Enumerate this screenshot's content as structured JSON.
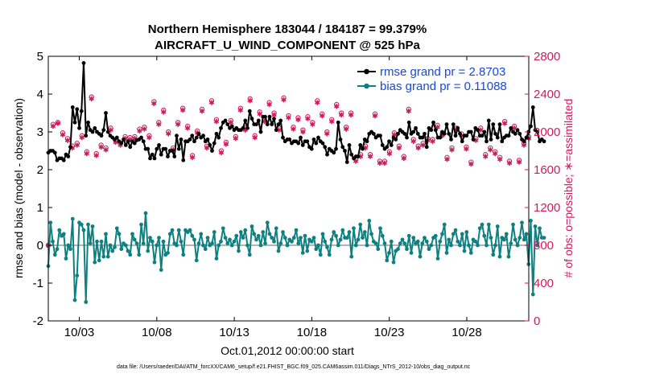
{
  "chart_data": {
    "type": "line",
    "title_line1": "Northern Hemisphere 183044 / 184187 = 99.379%",
    "title_line2": "AIRCRAFT_U_WIND_COMPONENT @ 525 hPa",
    "xlabel": "Oct.01,2012 00:00:00 start",
    "ylabel_left": "rmse and bias (model - observation)",
    "ylabel_right": "# of obs: o=possible; ∗=assimilated",
    "footnote": "data file: /Users/raeder/DAI/ATM_forcXX/CAM6_setup/f.e21.FHIST_BGC.f09_025.CAM6assim.011/Diags_NTrS_2012-10/obs_diag_output.nc",
    "x_tick_labels": [
      "10/03",
      "10/08",
      "10/13",
      "10/18",
      "10/23",
      "10/28"
    ],
    "x_tick_days": [
      3,
      8,
      13,
      18,
      23,
      28
    ],
    "xlim": [
      1,
      32
    ],
    "ylim_left": [
      -2,
      5
    ],
    "yticks_left": [
      "-2",
      "-1",
      "0",
      "1",
      "2",
      "3",
      "4",
      "5"
    ],
    "ylim_right": [
      0,
      2800
    ],
    "yticks_right": [
      "0",
      "400",
      "800",
      "1200",
      "1600",
      "2000",
      "2400",
      "2800"
    ],
    "grid": false,
    "legend_position": "top-right",
    "colors": {
      "rmse": "#000000",
      "bias": "#0f8080",
      "obs": "#d01a5c",
      "zero_line": "#b4b4b4",
      "legend_text": "#1a48d8"
    },
    "series": [
      {
        "name": "rmse grand pr = 2.8703",
        "axis": "left",
        "values": [
          2.45,
          2.5,
          2.5,
          2.45,
          2.25,
          2.3,
          2.3,
          2.25,
          2.4,
          2.35,
          2.6,
          3.65,
          3.25,
          3.6,
          3.1,
          3.55,
          4.82,
          2.9,
          3.25,
          3.05,
          3.0,
          3.1,
          3.0,
          2.95,
          2.9,
          3.05,
          3.5,
          3.0,
          2.9,
          2.85,
          2.8,
          2.85,
          2.75,
          2.7,
          2.8,
          2.65,
          2.75,
          2.6,
          2.75,
          2.7,
          2.78,
          2.8,
          2.85,
          2.75,
          2.55,
          2.55,
          2.3,
          2.4,
          2.3,
          2.55,
          2.65,
          2.4,
          2.55,
          2.55,
          2.35,
          2.5,
          2.5,
          2.35,
          2.9,
          2.55,
          2.8,
          2.25,
          2.75,
          2.75,
          2.8,
          2.9,
          2.75,
          2.85,
          2.95,
          2.85,
          2.9,
          2.75,
          2.8,
          2.65,
          2.5,
          2.7,
          2.95,
          2.85,
          3.1,
          3.25,
          3.3,
          3.2,
          3.1,
          3.15,
          3.05,
          3.1,
          3.05,
          3.05,
          3.1,
          3.3,
          3.1,
          3.55,
          3.35,
          3.2,
          3.2,
          3.3,
          3.0,
          3.4,
          3.4,
          3.2,
          3.4,
          3.2,
          3.35,
          3.05,
          3.2,
          3.3,
          2.85,
          2.75,
          2.8,
          2.8,
          2.7,
          2.75,
          2.75,
          2.7,
          2.85,
          2.65,
          2.75,
          2.75,
          2.6,
          2.55,
          2.8,
          2.7,
          2.85,
          2.75,
          2.7,
          2.6,
          2.4,
          2.55,
          2.5,
          2.45,
          2.55,
          3.25,
          2.8,
          2.6,
          2.5,
          2.2,
          2.65,
          2.4,
          2.3,
          2.35,
          2.35,
          2.65,
          2.55,
          2.8,
          2.75,
          2.95,
          3.0,
          2.95,
          2.85,
          2.9,
          2.9,
          2.65,
          2.55,
          2.6,
          2.75,
          2.65,
          2.85,
          2.8,
          2.95,
          3.05,
          3.0,
          2.95,
          2.85,
          3.25,
          2.95,
          3.0,
          3.1,
          2.95,
          2.85,
          2.85,
          2.95,
          2.6,
          3.1,
          3.05,
          3.25,
          3.05,
          2.85,
          2.85,
          3.0,
          2.95,
          3.2,
          2.95,
          2.8,
          3.2,
          2.9,
          3.1,
          2.95,
          2.75,
          2.9,
          2.9,
          3.0,
          3.0,
          2.8,
          3.1,
          3.05,
          2.9,
          2.9,
          3.0,
          2.75,
          3.3,
          2.8,
          3.2,
          2.95,
          2.85,
          3.2,
          2.75,
          2.85,
          2.9,
          2.9,
          3.1,
          3.0,
          2.95,
          3.05,
          2.95,
          2.8,
          2.75,
          2.85,
          3.0,
          3.15,
          3.65,
          3.05,
          3.0,
          2.75,
          2.8,
          2.75
        ],
        "x_start": 1.0,
        "x_step": 0.1428
      },
      {
        "name": "bias grand pr = 0.11088",
        "axis": "left",
        "values": [
          -0.55,
          0.6,
          0.1,
          -0.25,
          -0.1,
          0.4,
          0.25,
          0.3,
          -0.35,
          0.0,
          -0.1,
          0.7,
          -1.45,
          -0.8,
          0.6,
          0.55,
          0.4,
          -1.5,
          0.55,
          0.05,
          0.5,
          -0.45,
          0.1,
          -0.4,
          0.1,
          -0.3,
          0.3,
          -0.3,
          0.0,
          -0.15,
          -0.05,
          0.45,
          0.3,
          -0.1,
          0.05,
          0.0,
          -0.15,
          -0.25,
          0.3,
          0.15,
          0.05,
          -0.25,
          0.55,
          0.05,
          0.85,
          -0.15,
          0.2,
          0.1,
          -0.45,
          0.0,
          0.2,
          -0.65,
          0.1,
          -0.25,
          -0.2,
          0.3,
          0.4,
          0.05,
          0.0,
          0.4,
          0.1,
          -0.25,
          0.4,
          0.35,
          0.4,
          0.25,
          0.15,
          -0.4,
          0.05,
          0.3,
          0.0,
          -0.1,
          0.2,
          0.0,
          0.05,
          0.35,
          -0.35,
          0.0,
          0.1,
          0.45,
          0.2,
          0.05,
          0.15,
          0.0,
          0.1,
          0.25,
          -0.15,
          0.35,
          0.2,
          0.4,
          0.0,
          -0.25,
          0.5,
          0.3,
          0.15,
          0.25,
          0.0,
          0.35,
          0.05,
          0.6,
          0.3,
          0.2,
          0.1,
          0.45,
          -0.15,
          0.05,
          0.35,
          0.2,
          0.0,
          0.15,
          0.1,
          0.2,
          0.4,
          0.05,
          0.2,
          -0.2,
          0.25,
          -0.15,
          0.15,
          0.1,
          0.2,
          -0.1,
          0.0,
          -0.25,
          0.3,
          0.1,
          -0.05,
          -0.25,
          0.15,
          0.35,
          0.25,
          0.0,
          0.15,
          0.4,
          0.2,
          0.2,
          0.35,
          -0.3,
          0.45,
          0.0,
          0.15,
          0.55,
          0.2,
          0.35,
          0.0,
          0.65,
          0.3,
          0.1,
          0.05,
          -0.1,
          0.45,
          0.25,
          0.05,
          -0.4,
          -0.2,
          0.1,
          -0.45,
          -0.15,
          -0.1,
          0.05,
          0.15,
          0.05,
          -0.1,
          0.25,
          -0.2,
          0.2,
          0.05,
          0.1,
          -0.3,
          0.05,
          0.2,
          0.1,
          -0.1,
          0.0,
          0.2,
          0.25,
          -0.35,
          0.1,
          0.3,
          0.55,
          -0.2,
          0.15,
          0.0,
          0.3,
          0.4,
          0.1,
          0.0,
          0.3,
          -0.15,
          0.35,
          0.0,
          -0.2,
          0.15,
          0.1,
          0.0,
          0.45,
          0.55,
          0.25,
          0.0,
          0.55,
          0.2,
          -0.25,
          0.0,
          0.5,
          -0.3,
          0.2,
          0.15,
          0.3,
          -0.3,
          0.05,
          0.55,
          0.15,
          0.0,
          0.2,
          0.6,
          0.15,
          0.3,
          -0.5,
          0.65,
          -1.3,
          0.5,
          0.0,
          0.45,
          0.2,
          0.2
        ],
        "x_start": 1.0,
        "x_step": 0.1428
      },
      {
        "name": "obs possible",
        "axis": "right",
        "values": [
          800,
          2080,
          2100,
          1990,
          1930,
          1850,
          1880,
          1960,
          1790,
          2370,
          1770,
          1860,
          1830,
          2040,
          1910,
          1880,
          1950,
          1940,
          1950,
          2030,
          2050,
          1960,
          2320,
          2100,
          2230,
          2000,
          1830,
          2100,
          2250,
          2060,
          1750,
          2010,
          2240,
          1850,
          2330,
          2130,
          1800,
          1890,
          2120,
          1950,
          2250,
          2040,
          2350,
          1960,
          2210,
          2130,
          2310,
          2200,
          2040,
          2360,
          2170,
          2050,
          2150,
          2020,
          2160,
          2100,
          2330,
          2190,
          2000,
          2130,
          2290,
          2200,
          2050,
          2200,
          1710,
          1760,
          1850,
          1760,
          2190,
          1690,
          1690,
          1790,
          1990,
          1850,
          1740,
          2240,
          1920,
          1850,
          1880,
          1930,
          1920,
          2070,
          1980,
          1730,
          1830,
          2040,
          1980,
          1840,
          1680,
          1930,
          2040,
          1760,
          1830,
          1790,
          1730,
          2110,
          1690,
          2060,
          1700,
          1880,
          1950
        ],
        "x_start": 1.0,
        "x_step": 0.31
      },
      {
        "name": "obs assimilated",
        "axis": "right",
        "values": [
          800,
          2060,
          2090,
          1970,
          1910,
          1830,
          1860,
          1940,
          1770,
          2350,
          1750,
          1840,
          1810,
          2020,
          1890,
          1860,
          1930,
          1920,
          1930,
          2010,
          2030,
          1940,
          2300,
          2080,
          2210,
          1980,
          1810,
          2080,
          2230,
          2040,
          1730,
          1990,
          2220,
          1830,
          2310,
          2110,
          1780,
          1870,
          2100,
          1930,
          2230,
          2020,
          2330,
          1940,
          2190,
          2110,
          2290,
          2180,
          2020,
          2340,
          2150,
          2030,
          2130,
          2000,
          2140,
          2080,
          2310,
          2170,
          1980,
          2110,
          2270,
          2180,
          2030,
          2180,
          1690,
          1740,
          1830,
          1740,
          2170,
          1670,
          1670,
          1770,
          1970,
          1830,
          1720,
          2220,
          1900,
          1830,
          1860,
          1910,
          1900,
          2050,
          1960,
          1710,
          1810,
          2020,
          1960,
          1820,
          1660,
          1910,
          2020,
          1740,
          1810,
          1770,
          1710,
          2090,
          1670,
          2040,
          1680,
          1860,
          1930
        ],
        "x_start": 1.0,
        "x_step": 0.31
      }
    ]
  }
}
